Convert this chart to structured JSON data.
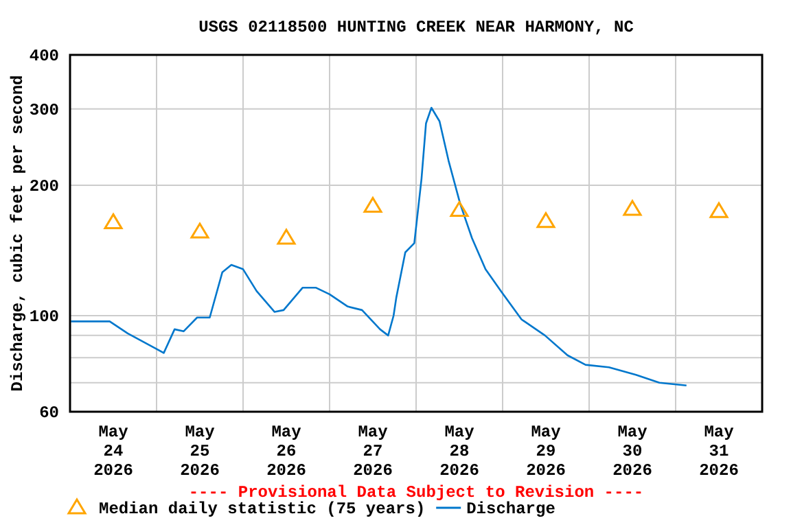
{
  "chart_data": {
    "type": "line",
    "title": "USGS 02118500 HUNTING CREEK NEAR HARMONY, NC",
    "ylabel": "Discharge, cubic feet per second",
    "annotations": [
      "---- Provisional Data Subject to Revision ----"
    ],
    "log": "y",
    "grid": true,
    "legend": "bottom",
    "xlim": [
      "2026-05-24",
      "2026-06-01"
    ],
    "xticks": [
      {
        "value": "2026-05-24T12:00",
        "label": "May\n24\n2026"
      },
      {
        "value": "2026-05-25T12:00",
        "label": "May\n25\n2026"
      },
      {
        "value": "2026-05-26T12:00",
        "label": "May\n26\n2026"
      },
      {
        "value": "2026-05-27T12:00",
        "label": "May\n27\n2026"
      },
      {
        "value": "2026-05-28T12:00",
        "label": "May\n28\n2026"
      },
      {
        "value": "2026-05-29T12:00",
        "label": "May\n29\n2026"
      },
      {
        "value": "2026-05-30T12:00",
        "label": "May\n30\n2026"
      },
      {
        "value": "2026-05-31T12:00",
        "label": "May\n31\n2026"
      },
      {
        "value": "2026-05-25",
        "label": null
      },
      {
        "value": "2026-05-26",
        "label": null
      },
      {
        "value": "2026-05-27",
        "label": null
      },
      {
        "value": "2026-05-28",
        "label": null
      },
      {
        "value": "2026-05-29",
        "label": null
      },
      {
        "value": "2026-05-30",
        "label": null
      },
      {
        "value": "2026-05-31",
        "label": null
      }
    ],
    "ylim": [
      60,
      400
    ],
    "yticks": [
      60,
      {
        "value": 70,
        "label": null
      },
      {
        "value": 80,
        "label": null
      },
      {
        "value": 90,
        "label": null
      },
      100,
      200,
      300,
      400
    ],
    "series": [
      {
        "name": "Median daily statistic (75 years)",
        "type": "scatter",
        "marker": "triangle",
        "color": "#ffa500",
        "x": [
          "2026-05-24T12:00",
          "2026-05-25T12:00",
          "2026-05-26T12:00",
          "2026-05-27T12:00",
          "2026-05-28T12:00",
          "2026-05-29T12:00",
          "2026-05-30T12:00",
          "2026-05-31T12:00"
        ],
        "values": [
          164,
          156,
          151,
          179,
          175,
          165,
          176,
          174
        ]
      },
      {
        "name": "Discharge",
        "color": "#0077cc",
        "x": [
          "2026-05-24T00:15",
          "2026-05-24T11:00",
          "2026-05-24T16:00",
          "2026-05-24T23:45",
          "2026-05-25T02:00",
          "2026-05-25T05:00",
          "2026-05-25T07:30",
          "2026-05-25T11:15",
          "2026-05-25T14:45",
          "2026-05-25T18:15",
          "2026-05-25T20:45",
          "2026-05-26T00:00",
          "2026-05-26T03:45",
          "2026-05-26T08:45",
          "2026-05-26T11:15",
          "2026-05-26T16:30",
          "2026-05-26T20:15",
          "2026-05-27T00:00",
          "2026-05-27T05:00",
          "2026-05-27T09:00",
          "2026-05-27T14:00",
          "2026-05-27T16:15",
          "2026-05-27T17:45",
          "2026-05-27T18:30",
          "2026-05-27T21:00",
          "2026-05-27T23:30",
          "2026-05-28T01:30",
          "2026-05-28T02:45",
          "2026-05-28T04:15",
          "2026-05-28T06:30",
          "2026-05-28T09:00",
          "2026-05-28T12:15",
          "2026-05-28T15:30",
          "2026-05-28T19:15",
          "2026-05-28T23:30",
          "2026-05-29T05:15",
          "2026-05-29T11:45",
          "2026-05-29T18:00",
          "2026-05-29T23:00",
          "2026-05-30T05:30",
          "2026-05-30T13:00",
          "2026-05-30T19:30",
          "2026-05-31T03:00"
        ],
        "values": [
          97,
          97,
          91,
          84,
          82,
          93,
          92,
          99,
          99,
          126,
          131,
          128,
          114,
          102,
          103,
          116,
          116,
          112,
          105,
          103,
          93,
          90,
          100,
          110,
          140,
          147,
          207,
          278,
          302,
          281,
          228,
          181,
          151,
          128,
          114,
          98,
          90,
          81,
          77,
          76,
          73,
          70,
          69
        ]
      }
    ]
  }
}
